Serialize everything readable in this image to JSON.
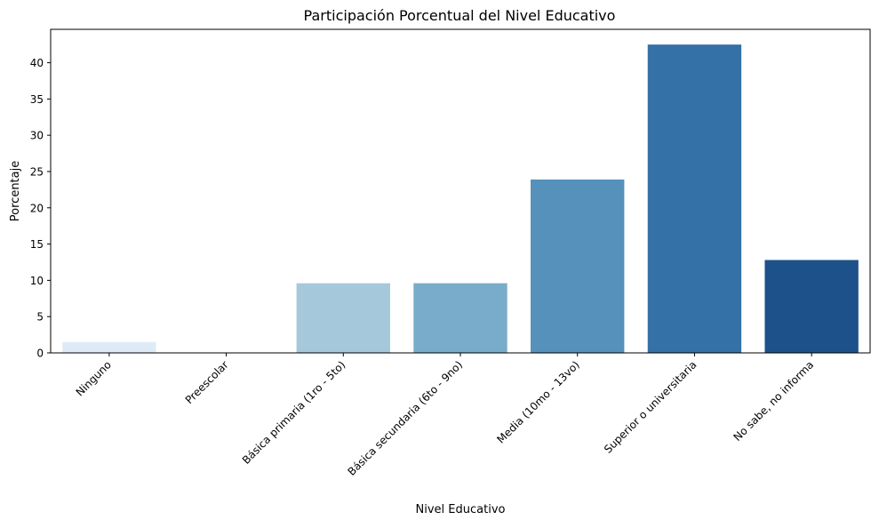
{
  "chart_data": {
    "type": "bar",
    "title": "Participación Porcentual del Nivel Educativo",
    "xlabel": "Nivel Educativo",
    "ylabel": "Porcentaje",
    "categories": [
      "Ninguno",
      "Preescolar",
      "Básica primaria (1ro - 5to)",
      "Básica secundaria (6to - 9no)",
      "Media (10mo - 13vo)",
      "Superior o universitaria",
      "No sabe, no informa"
    ],
    "values": [
      1.5,
      0.0,
      9.6,
      9.6,
      23.9,
      42.5,
      12.8
    ],
    "colors": [
      "#deebf7",
      "#c6dbef",
      "#a6c8db",
      "#79abca",
      "#5591bb",
      "#3471a6",
      "#1d5189"
    ],
    "ylim": [
      0,
      44.6
    ],
    "yticks": [
      0,
      5,
      10,
      15,
      20,
      25,
      30,
      35,
      40
    ],
    "grid": false,
    "legend": "none"
  }
}
